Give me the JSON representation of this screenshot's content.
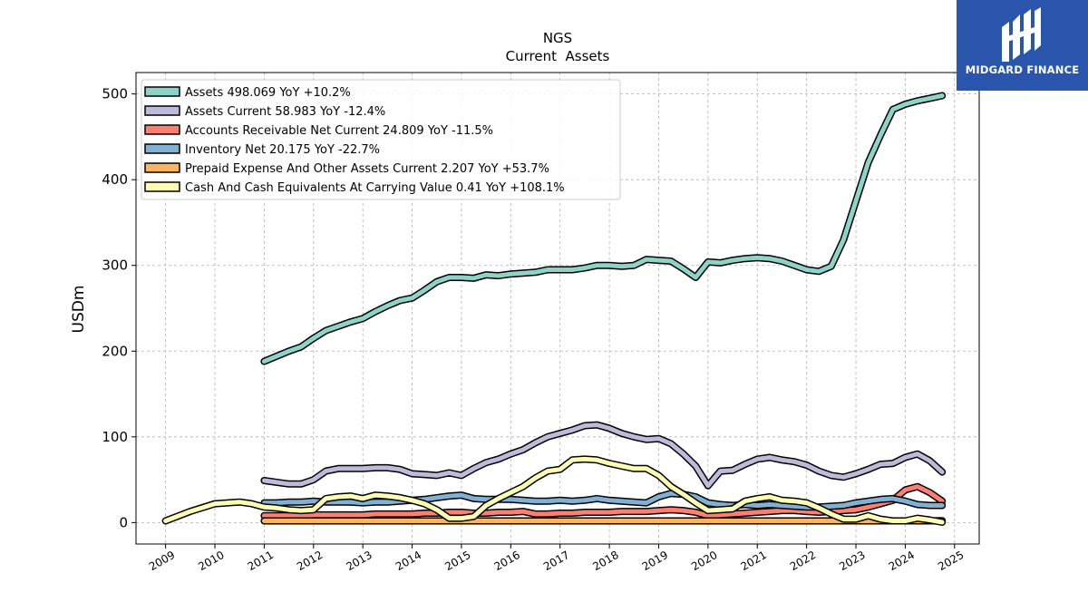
{
  "brand": {
    "name": "MIDGARD FINANCE",
    "bg_color": "#2a55ad"
  },
  "chart_data": {
    "type": "line",
    "title": "NGS",
    "subtitle": "Current  Assets",
    "xlabel": "",
    "ylabel": "USDm",
    "xlim": [
      2008.4,
      2025.5
    ],
    "ylim": [
      -25,
      525
    ],
    "x_ticks": [
      "2009",
      "2010",
      "2011",
      "2012",
      "2013",
      "2014",
      "2015",
      "2016",
      "2017",
      "2018",
      "2019",
      "2020",
      "2021",
      "2022",
      "2023",
      "2024",
      "2025"
    ],
    "y_ticks": [
      0,
      100,
      200,
      300,
      400,
      500
    ],
    "grid": true,
    "legend_position": "top-left",
    "series": [
      {
        "name": "Assets  498.069 YoY +10.2%",
        "color": "#8dd3c7",
        "x": [
          2011.0,
          2011.25,
          2011.5,
          2011.75,
          2012.0,
          2012.25,
          2012.5,
          2012.75,
          2013.0,
          2013.25,
          2013.5,
          2013.75,
          2014.0,
          2014.25,
          2014.5,
          2014.75,
          2015.0,
          2015.25,
          2015.5,
          2015.75,
          2016.0,
          2016.25,
          2016.5,
          2016.75,
          2017.0,
          2017.25,
          2017.5,
          2017.75,
          2018.0,
          2018.25,
          2018.5,
          2018.75,
          2019.0,
          2019.25,
          2019.5,
          2019.75,
          2020.0,
          2020.25,
          2020.5,
          2020.75,
          2021.0,
          2021.25,
          2021.5,
          2021.75,
          2022.0,
          2022.25,
          2022.5,
          2022.75,
          2023.0,
          2023.25,
          2023.5,
          2023.75,
          2024.0,
          2024.25,
          2024.5,
          2024.75
        ],
        "values": [
          188,
          194,
          200,
          205,
          215,
          224,
          229,
          234,
          238,
          246,
          253,
          259,
          262,
          271,
          281,
          286,
          286,
          285,
          289,
          288,
          290,
          291,
          292,
          295,
          295,
          295,
          297,
          300,
          300,
          299,
          300,
          307,
          306,
          305,
          296,
          286,
          304,
          303,
          306,
          308,
          309,
          308,
          305,
          300,
          295,
          293,
          299,
          330,
          375,
          420,
          452,
          482,
          488,
          492,
          495,
          498
        ]
      },
      {
        "name": "Assets Current  58.983 YoY -12.4%",
        "color": "#bebada",
        "x": [
          2011.0,
          2011.25,
          2011.5,
          2011.75,
          2012.0,
          2012.25,
          2012.5,
          2012.75,
          2013.0,
          2013.25,
          2013.5,
          2013.75,
          2014.0,
          2014.25,
          2014.5,
          2014.75,
          2015.0,
          2015.25,
          2015.5,
          2015.75,
          2016.0,
          2016.25,
          2016.5,
          2016.75,
          2017.0,
          2017.25,
          2017.5,
          2017.75,
          2018.0,
          2018.25,
          2018.5,
          2018.75,
          2019.0,
          2019.25,
          2019.5,
          2019.75,
          2020.0,
          2020.25,
          2020.5,
          2020.75,
          2021.0,
          2021.25,
          2021.5,
          2021.75,
          2022.0,
          2022.25,
          2022.5,
          2022.75,
          2023.0,
          2023.25,
          2023.5,
          2023.75,
          2024.0,
          2024.25,
          2024.5,
          2024.75
        ],
        "values": [
          49,
          47,
          45,
          45,
          50,
          60,
          63,
          63,
          63,
          64,
          64,
          62,
          57,
          56,
          55,
          58,
          55,
          63,
          70,
          74,
          80,
          85,
          93,
          100,
          104,
          108,
          113,
          114,
          110,
          104,
          100,
          97,
          98,
          92,
          80,
          66,
          43,
          60,
          61,
          68,
          74,
          76,
          73,
          71,
          67,
          60,
          55,
          53,
          57,
          62,
          68,
          69,
          76,
          80,
          72,
          59
        ]
      },
      {
        "name": "Accounts Receivable Net Current  24.809 YoY -11.5%",
        "color": "#fb8072",
        "x": [
          2011.0,
          2011.25,
          2011.5,
          2011.75,
          2012.0,
          2012.25,
          2012.5,
          2012.75,
          2013.0,
          2013.25,
          2013.5,
          2013.75,
          2014.0,
          2014.25,
          2014.5,
          2014.75,
          2015.0,
          2015.25,
          2015.5,
          2015.75,
          2016.0,
          2016.25,
          2016.5,
          2016.75,
          2017.0,
          2017.25,
          2017.5,
          2017.75,
          2018.0,
          2018.25,
          2018.5,
          2018.75,
          2019.0,
          2019.25,
          2019.5,
          2019.75,
          2020.0,
          2020.25,
          2020.5,
          2020.75,
          2021.0,
          2021.25,
          2021.5,
          2021.75,
          2022.0,
          2022.25,
          2022.5,
          2022.75,
          2023.0,
          2023.25,
          2023.5,
          2023.75,
          2024.0,
          2024.25,
          2024.5,
          2024.75
        ],
        "values": [
          8,
          8,
          8,
          8,
          9,
          9,
          9,
          9,
          9,
          10,
          10,
          10,
          10,
          11,
          11,
          12,
          12,
          11,
          11,
          12,
          12,
          13,
          10,
          10,
          11,
          11,
          12,
          12,
          12,
          13,
          13,
          13,
          14,
          15,
          14,
          12,
          8,
          9,
          10,
          11,
          12,
          13,
          14,
          14,
          13,
          12,
          13,
          14,
          15,
          18,
          22,
          26,
          38,
          42,
          35,
          25
        ]
      },
      {
        "name": "Inventory Net  20.175 YoY -22.7%",
        "color": "#80b1d3",
        "x": [
          2011.0,
          2011.25,
          2011.5,
          2011.75,
          2012.0,
          2012.25,
          2012.5,
          2012.75,
          2013.0,
          2013.25,
          2013.5,
          2013.75,
          2014.0,
          2014.25,
          2014.5,
          2014.75,
          2015.0,
          2015.25,
          2015.5,
          2015.75,
          2016.0,
          2016.25,
          2016.5,
          2016.75,
          2017.0,
          2017.25,
          2017.5,
          2017.75,
          2018.0,
          2018.25,
          2018.5,
          2018.75,
          2019.0,
          2019.25,
          2019.5,
          2019.75,
          2020.0,
          2020.25,
          2020.5,
          2020.75,
          2021.0,
          2021.25,
          2021.5,
          2021.75,
          2022.0,
          2022.25,
          2022.5,
          2022.75,
          2023.0,
          2023.25,
          2023.5,
          2023.75,
          2024.0,
          2024.25,
          2024.5,
          2024.75
        ],
        "values": [
          23,
          23,
          24,
          24,
          25,
          24,
          24,
          24,
          23,
          24,
          24,
          25,
          26,
          27,
          29,
          31,
          32,
          28,
          27,
          27,
          27,
          26,
          25,
          25,
          26,
          25,
          26,
          28,
          26,
          25,
          24,
          23,
          30,
          34,
          33,
          30,
          23,
          21,
          20,
          21,
          20,
          21,
          20,
          19,
          18,
          18,
          19,
          20,
          23,
          25,
          27,
          28,
          25,
          21,
          20,
          20
        ]
      },
      {
        "name": "Prepaid Expense And Other Assets Current  2.207 YoY +53.7%",
        "color": "#fdb462",
        "x": [
          2011.0,
          2011.25,
          2011.5,
          2011.75,
          2012.0,
          2012.25,
          2012.5,
          2012.75,
          2013.0,
          2013.25,
          2013.5,
          2013.75,
          2014.0,
          2014.25,
          2014.5,
          2014.75,
          2015.0,
          2015.25,
          2015.5,
          2015.75,
          2016.0,
          2016.25,
          2016.5,
          2016.75,
          2017.0,
          2017.25,
          2017.5,
          2017.75,
          2018.0,
          2018.25,
          2018.5,
          2018.75,
          2019.0,
          2019.25,
          2019.5,
          2019.75,
          2020.0,
          2020.25,
          2020.5,
          2020.75,
          2021.0,
          2021.25,
          2021.5,
          2021.75,
          2022.0,
          2022.25,
          2022.5,
          2022.75,
          2023.0,
          2023.25,
          2023.5,
          2023.75,
          2024.0,
          2024.25,
          2024.5,
          2024.75
        ],
        "values": [
          2,
          2,
          2,
          2,
          2,
          2,
          2,
          2,
          2,
          2,
          2,
          2,
          2,
          2,
          2,
          2,
          2,
          2,
          2,
          2,
          2,
          2,
          2,
          2,
          2,
          2,
          2,
          2,
          2,
          2,
          2,
          2,
          2,
          2,
          2,
          2,
          2,
          2,
          2,
          2,
          2,
          2,
          2,
          2,
          2,
          2,
          2,
          2,
          2,
          2,
          2,
          2,
          2,
          2,
          2,
          2.2
        ]
      },
      {
        "name": "Cash And Cash Equivalents At Carrying Value  0.41 YoY +108.1%",
        "color": "#ffffb3",
        "x": [
          2009.0,
          2009.5,
          2010.0,
          2010.5,
          2010.75,
          2011.0,
          2011.25,
          2011.5,
          2011.75,
          2012.0,
          2012.25,
          2012.5,
          2012.75,
          2013.0,
          2013.25,
          2013.5,
          2013.75,
          2014.0,
          2014.25,
          2014.5,
          2014.75,
          2015.0,
          2015.25,
          2015.5,
          2015.75,
          2016.0,
          2016.25,
          2016.5,
          2016.75,
          2017.0,
          2017.25,
          2017.5,
          2017.75,
          2018.0,
          2018.25,
          2018.5,
          2018.75,
          2019.0,
          2019.25,
          2019.5,
          2019.75,
          2020.0,
          2020.25,
          2020.5,
          2020.75,
          2021.0,
          2021.25,
          2021.5,
          2021.75,
          2022.0,
          2022.25,
          2022.5,
          2022.75,
          2023.0,
          2023.25,
          2023.5,
          2023.75,
          2024.0,
          2024.25,
          2024.5,
          2024.75
        ],
        "values": [
          2,
          13,
          22,
          24,
          22,
          18,
          17,
          15,
          14,
          15,
          28,
          30,
          31,
          28,
          32,
          31,
          29,
          26,
          22,
          15,
          5,
          5,
          7,
          20,
          28,
          35,
          42,
          52,
          60,
          62,
          73,
          74,
          73,
          69,
          66,
          63,
          63,
          55,
          42,
          33,
          23,
          14,
          15,
          16,
          25,
          28,
          30,
          26,
          25,
          23,
          17,
          10,
          4,
          4,
          8,
          4,
          2,
          2,
          5,
          3,
          0.4
        ]
      }
    ]
  }
}
